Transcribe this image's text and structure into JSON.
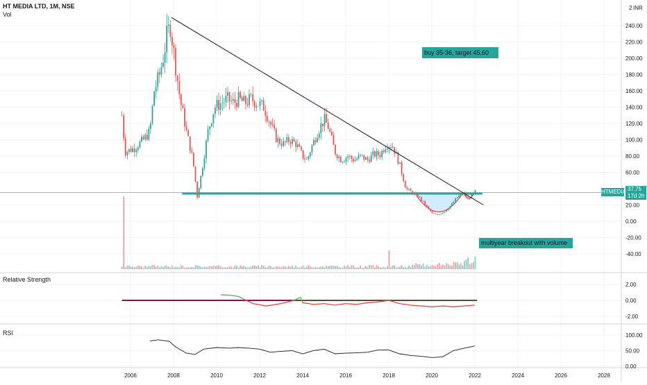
{
  "header": {
    "symbol_line": "HT MEDIA LTD, 1M, NSE",
    "volume_label": "Vol",
    "currency": "INR"
  },
  "panes": {
    "rs_label": "Relative Strength",
    "rsi_label": "RSI"
  },
  "price_badge": {
    "ticker": "HTMEDIA",
    "price": "37.75",
    "countdown": "17d 2h"
  },
  "annotations": {
    "buy_note": "buy 35-36, target 45,60",
    "breakout_note": "multiyear breakout with volume"
  },
  "colors": {
    "up": "#26a69a",
    "down": "#ef5350",
    "trendline": "#131722",
    "support": "#26a69a",
    "cup_fill": "#cfe8ff",
    "cup_stroke": "#e53935",
    "rs_up": "#4caf50",
    "rs_down": "#f44336",
    "rs_zero": "#880e4f",
    "note_bg": "#26a69a",
    "rsi_line": "#131722"
  },
  "chart_data": [
    {
      "type": "candlestick",
      "title": "HT MEDIA LTD, 1M, NSE",
      "ylabel": "INR",
      "price_ticks": [
        "240.00",
        "220.00",
        "200.00",
        "180.00",
        "160.00",
        "140.00",
        "120.00",
        "100.00",
        "80.00",
        "60.00",
        "20.00",
        "0.00",
        "-20.00",
        "-40.00"
      ],
      "x_ticks": [
        "2006",
        "2008",
        "2010",
        "2012",
        "2014",
        "2016",
        "2018",
        "2020",
        "2022",
        "2024",
        "2026",
        "2028"
      ],
      "series_path": [
        [
          2005.6,
          130
        ],
        [
          2005.75,
          85
        ],
        [
          2006.2,
          90
        ],
        [
          2006.6,
          100
        ],
        [
          2006.9,
          110
        ],
        [
          2007.1,
          160
        ],
        [
          2007.35,
          180
        ],
        [
          2007.55,
          205
        ],
        [
          2007.7,
          230
        ],
        [
          2007.85,
          240
        ],
        [
          2008.1,
          190
        ],
        [
          2008.3,
          150
        ],
        [
          2008.6,
          110
        ],
        [
          2008.9,
          75
        ],
        [
          2009.1,
          30
        ],
        [
          2009.3,
          60
        ],
        [
          2009.6,
          110
        ],
        [
          2009.9,
          140
        ],
        [
          2010.2,
          145
        ],
        [
          2010.5,
          150
        ],
        [
          2010.8,
          145
        ],
        [
          2011.0,
          150
        ],
        [
          2011.3,
          145
        ],
        [
          2011.6,
          150
        ],
        [
          2011.9,
          145
        ],
        [
          2012.2,
          140
        ],
        [
          2012.5,
          120
        ],
        [
          2012.8,
          100
        ],
        [
          2013.1,
          95
        ],
        [
          2013.4,
          100
        ],
        [
          2013.7,
          95
        ],
        [
          2014.0,
          80
        ],
        [
          2014.2,
          75
        ],
        [
          2014.4,
          90
        ],
        [
          2014.7,
          110
        ],
        [
          2015.0,
          125
        ],
        [
          2015.2,
          115
        ],
        [
          2015.5,
          85
        ],
        [
          2015.8,
          75
        ],
        [
          2016.1,
          80
        ],
        [
          2016.4,
          75
        ],
        [
          2016.7,
          80
        ],
        [
          2017.0,
          75
        ],
        [
          2017.3,
          82
        ],
        [
          2017.6,
          82
        ],
        [
          2017.9,
          95
        ],
        [
          2018.2,
          92
        ],
        [
          2018.5,
          70
        ],
        [
          2018.8,
          40
        ],
        [
          2019.1,
          35
        ],
        [
          2019.4,
          30
        ],
        [
          2019.7,
          20
        ],
        [
          2020.0,
          10
        ],
        [
          2020.3,
          8
        ],
        [
          2020.6,
          12
        ],
        [
          2020.9,
          20
        ],
        [
          2021.2,
          30
        ],
        [
          2021.5,
          34
        ],
        [
          2021.7,
          28
        ],
        [
          2021.9,
          32
        ],
        [
          2022.05,
          37.75
        ]
      ],
      "volume_spikes": [
        [
          2005.7,
          105
        ],
        [
          2018.0,
          27
        ],
        [
          2021.7,
          17
        ],
        [
          2022.0,
          18
        ]
      ],
      "last_price": 37.75,
      "support_level": 34,
      "trendline": {
        "from": [
          2007.9,
          250
        ],
        "to": [
          2022.4,
          20
        ]
      }
    },
    {
      "type": "line",
      "title": "Relative Strength",
      "y_ticks": [
        "2.00",
        "0.00",
        "-2.00"
      ],
      "series": [
        {
          "values": [
            [
              2010.2,
              0.7
            ],
            [
              2010.6,
              0.65
            ],
            [
              2011.0,
              0.5
            ],
            [
              2011.3,
              0.1
            ],
            [
              2011.7,
              -0.4
            ],
            [
              2012.3,
              -0.7
            ],
            [
              2013.0,
              -0.4
            ],
            [
              2013.6,
              0.0
            ],
            [
              2013.9,
              0.4
            ],
            [
              2014.0,
              -0.3
            ],
            [
              2014.5,
              -0.5
            ],
            [
              2015.0,
              -0.4
            ],
            [
              2015.5,
              -0.6
            ],
            [
              2016.0,
              -0.4
            ],
            [
              2016.5,
              -0.5
            ],
            [
              2017.0,
              -0.3
            ],
            [
              2017.5,
              -0.2
            ],
            [
              2018.0,
              0.0
            ],
            [
              2018.5,
              -0.4
            ],
            [
              2019.0,
              -0.6
            ],
            [
              2019.5,
              -0.7
            ],
            [
              2020.0,
              -0.8
            ],
            [
              2020.5,
              -0.7
            ],
            [
              2021.0,
              -0.8
            ],
            [
              2021.5,
              -0.7
            ],
            [
              2022.0,
              -0.6
            ]
          ]
        }
      ]
    },
    {
      "type": "line",
      "title": "RSI",
      "y_ticks": [
        "100.00",
        "50.00",
        "0.00"
      ],
      "series": [
        {
          "values": [
            [
              2006.9,
              81
            ],
            [
              2007.3,
              85
            ],
            [
              2007.8,
              80
            ],
            [
              2008.1,
              62
            ],
            [
              2008.6,
              42
            ],
            [
              2009.0,
              38
            ],
            [
              2009.4,
              55
            ],
            [
              2010.0,
              60
            ],
            [
              2010.6,
              58
            ],
            [
              2011.0,
              60
            ],
            [
              2011.5,
              58
            ],
            [
              2012.0,
              55
            ],
            [
              2012.5,
              45
            ],
            [
              2013.0,
              48
            ],
            [
              2013.5,
              50
            ],
            [
              2014.0,
              40
            ],
            [
              2014.5,
              50
            ],
            [
              2015.0,
              55
            ],
            [
              2015.5,
              40
            ],
            [
              2016.0,
              42
            ],
            [
              2016.5,
              43
            ],
            [
              2017.0,
              45
            ],
            [
              2017.5,
              52
            ],
            [
              2018.0,
              52
            ],
            [
              2018.5,
              40
            ],
            [
              2019.0,
              35
            ],
            [
              2019.5,
              32
            ],
            [
              2020.0,
              28
            ],
            [
              2020.5,
              30
            ],
            [
              2021.0,
              50
            ],
            [
              2021.5,
              58
            ],
            [
              2022.0,
              65
            ]
          ]
        }
      ]
    }
  ]
}
